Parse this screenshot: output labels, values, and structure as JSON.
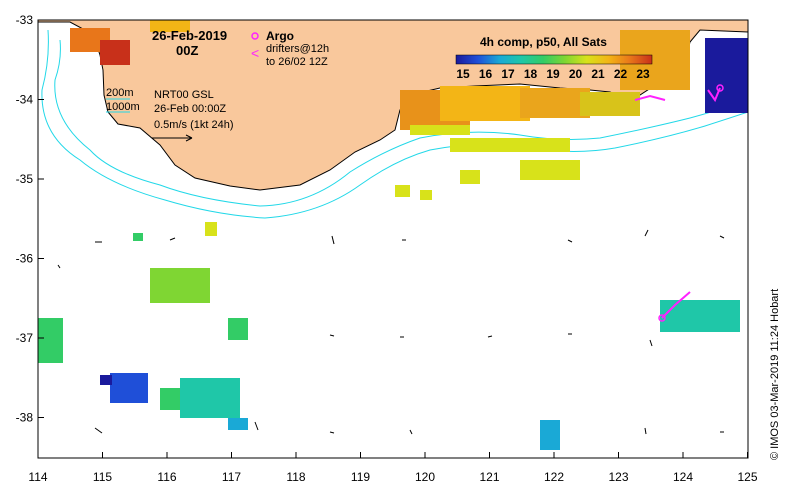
{
  "map": {
    "title_date": "26-Feb-2019",
    "title_hour": "00Z",
    "argo_label": "Argo",
    "drifters_label": "drifters@12h",
    "drifters_sub": "to 26/02 12Z",
    "colorbar_title": "4h comp, p50, All Sats",
    "colorbar_ticks": [
      "15",
      "16",
      "17",
      "18",
      "19",
      "20",
      "21",
      "22",
      "23"
    ],
    "colorbar_colors": [
      "#1a1a9c",
      "#1f4fd8",
      "#1aa9d6",
      "#1fc7a8",
      "#33cc66",
      "#7fd633",
      "#d8e21a",
      "#f3b516",
      "#e8761a",
      "#c8301a"
    ],
    "contour_200": "200m",
    "contour_1000": "1000m",
    "gsl_label": "NRT00 GSL",
    "gsl_date": "26-Feb 00:00Z",
    "scale_label": "0.5m/s (1kt 24h)",
    "credit": "© IMOS 03-Mar-2019 11:24 Hobart",
    "lat_ticks": [
      "-33",
      "-34",
      "-35",
      "-36",
      "-37",
      "-38"
    ],
    "lon_ticks": [
      "114",
      "115",
      "116",
      "117",
      "118",
      "119",
      "120",
      "121",
      "122",
      "123",
      "124",
      "125"
    ],
    "colors": {
      "land": "#f9c89c",
      "land_outline": "#000000",
      "contour": "#22d8e8",
      "argo": "#ff22ff",
      "cold": "#1a1a9c",
      "warm": "#e8761a"
    }
  }
}
